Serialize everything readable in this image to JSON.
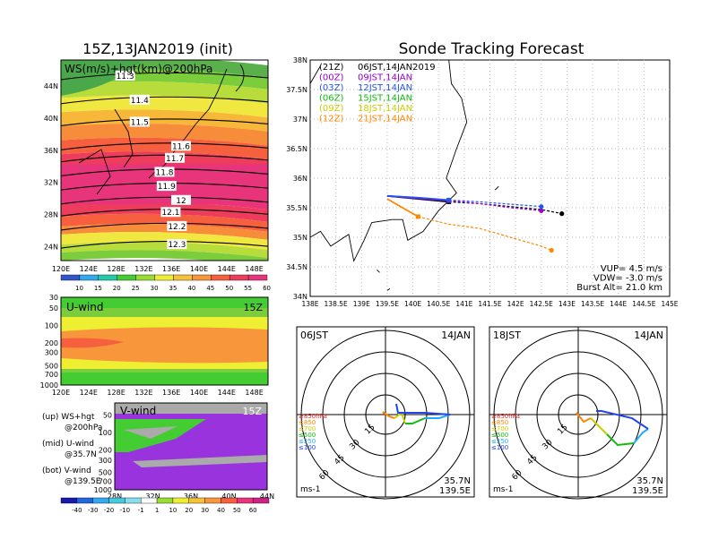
{
  "left_title": "15Z,13JAN2019 (init)",
  "right_title": "Sonde Tracking Forecast",
  "map": {
    "label": "WS(m/s)+hgt(km)@200hPa",
    "lat_ticks": [
      "44N",
      "40N",
      "36N",
      "32N",
      "28N",
      "24N"
    ],
    "lon_ticks": [
      "120E",
      "124E",
      "128E",
      "132E",
      "136E",
      "140E",
      "144E",
      "148E"
    ],
    "contours": [
      "11.3",
      "11.4",
      "11.5",
      "11.6",
      "11.7",
      "11.8",
      "11.9",
      "12",
      "12.1",
      "12.2",
      "12.3"
    ],
    "colorbar": [
      "10",
      "15",
      "20",
      "25",
      "30",
      "35",
      "40",
      "45",
      "50",
      "55",
      "60"
    ]
  },
  "uwind": {
    "label": "U-wind",
    "time": "15Z",
    "p_ticks": [
      "30",
      "50",
      "100",
      "200",
      "300",
      "500",
      "700",
      "1000"
    ],
    "lon_ticks": [
      "120E",
      "124E",
      "128E",
      "132E",
      "136E",
      "140E",
      "144E",
      "148E"
    ]
  },
  "vwind": {
    "label": "V-wind",
    "time": "15Z",
    "p_ticks": [
      "50",
      "100",
      "200",
      "300",
      "500",
      "700",
      "1000"
    ],
    "lat_ticks": [
      "28N",
      "32N",
      "36N",
      "40N",
      "44N"
    ]
  },
  "legend_notes": [
    [
      "(up) WS+hgt",
      "@200hPa"
    ],
    [
      "(mid) U-wind",
      "@35.7N"
    ],
    [
      "(bot) V-wind",
      "@139.5E"
    ]
  ],
  "bottom_colorbar": [
    "-40",
    "-30",
    "-20",
    "-10",
    "-1",
    "1",
    "10",
    "20",
    "30",
    "40",
    "50",
    "60"
  ],
  "track": {
    "lat_ticks": [
      "38N",
      "37.5N",
      "37N",
      "36.5N",
      "36N",
      "35.5N",
      "35N",
      "34.5N",
      "34N"
    ],
    "lon_ticks": [
      "138E",
      "138.5E",
      "139E",
      "139.5E",
      "140E",
      "140.5E",
      "141E",
      "141.5E",
      "142E",
      "142.5E",
      "143E",
      "143.5E",
      "144E",
      "144.5E",
      "145E"
    ],
    "legend": [
      {
        "utc": "(21Z)",
        "jst": "06JST,14JAN2019",
        "color": "#000000"
      },
      {
        "utc": "(00Z)",
        "jst": "09JST,14JAN",
        "color": "#9900cc"
      },
      {
        "utc": "(03Z)",
        "jst": "12JST,14JAN",
        "color": "#2255ee"
      },
      {
        "utc": "(06Z)",
        "jst": "15JST,14JAN",
        "color": "#11bb11"
      },
      {
        "utc": "(09Z)",
        "jst": "18JST,14JAN",
        "color": "#cccc00"
      },
      {
        "utc": "(12Z)",
        "jst": "21JST,14JAN",
        "color": "#ff8800"
      }
    ],
    "params": [
      "VUP= 4.5 m/s",
      "VDW= -3.0 m/s",
      "Burst Alt= 21.0 km"
    ]
  },
  "hodographs": [
    {
      "time": "06JST",
      "date": "14JAN",
      "loc1": "35.7N",
      "loc2": "139.5E",
      "unit": "ms-1"
    },
    {
      "time": "18JST",
      "date": "14JAN",
      "loc1": "35.7N",
      "loc2": "139.5E",
      "unit": "ms-1"
    }
  ],
  "hodo_rings": [
    "15",
    "30",
    "45",
    "60"
  ],
  "hodo_levels": [
    {
      "label": "≥850hPa",
      "color": "#ee2222"
    },
    {
      "label": "≤850",
      "color": "#ff8800"
    },
    {
      "label": "≤700",
      "color": "#cccc00"
    },
    {
      "label": "≤500",
      "color": "#11bb11"
    },
    {
      "label": "≤250",
      "color": "#22aaff"
    },
    {
      "label": "≤100",
      "color": "#2244ee"
    }
  ],
  "chart_data": [
    {
      "type": "line",
      "title": "Sonde Tracking Forecast",
      "xlim": [
        138,
        145
      ],
      "ylim": [
        34,
        38
      ],
      "series": [
        {
          "name": "(21Z) 06JST,14JAN2019",
          "color": "#000000",
          "x": [
            139.5,
            140.1,
            140.7,
            141.3,
            141.9,
            142.5,
            142.9
          ],
          "y": [
            35.7,
            35.65,
            35.6,
            35.57,
            35.52,
            35.47,
            35.4
          ]
        },
        {
          "name": "(00Z) 09JST,14JAN",
          "color": "#9900cc",
          "x": [
            139.5,
            140.1,
            140.7,
            141.3,
            141.9,
            142.5
          ],
          "y": [
            35.7,
            35.66,
            35.62,
            35.57,
            35.5,
            35.45
          ]
        },
        {
          "name": "(03Z) 12JST,14JAN",
          "color": "#2255ee",
          "x": [
            139.5,
            140.1,
            140.7,
            141.3,
            141.9,
            142.5
          ],
          "y": [
            35.7,
            35.67,
            35.63,
            35.6,
            35.56,
            35.52
          ]
        },
        {
          "name": "(12Z) 21JST,14JAN",
          "color": "#ff8800",
          "x": [
            139.5,
            139.8,
            140.1,
            140.7,
            141.3,
            141.9,
            142.5,
            142.7
          ],
          "y": [
            35.65,
            35.5,
            35.35,
            35.22,
            35.15,
            35.0,
            34.85,
            34.78
          ]
        }
      ]
    }
  ]
}
